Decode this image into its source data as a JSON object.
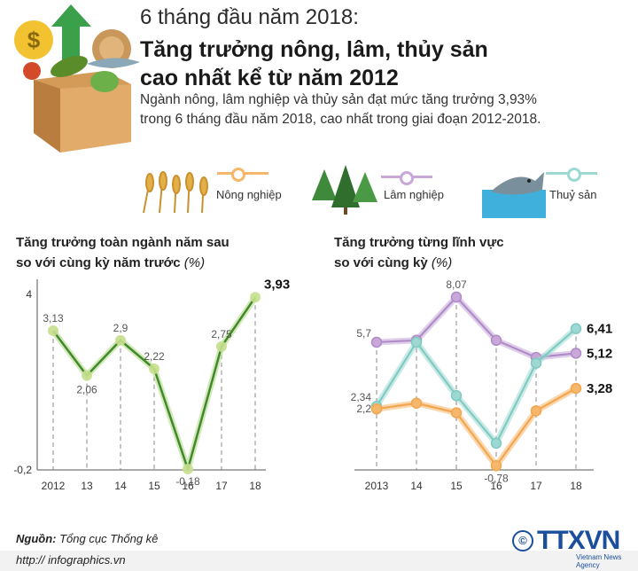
{
  "header": {
    "overline": "6 tháng đầu năm 2018:",
    "title_line1": "Tăng trưởng nông, lâm, thủy sản",
    "title_line2": "cao nhất kể từ năm 2012",
    "desc_line1": "Ngành nông, lâm nghiệp và thủy sản đạt mức tăng trưởng 3,93%",
    "desc_line2": "trong 6 tháng đầu năm 2018, cao nhất trong giai đoạn 2012-2018."
  },
  "legend": [
    {
      "label": "Nông nghiệp",
      "color": "#f5b76a",
      "icon": "wheat-icon"
    },
    {
      "label": "Lâm nghiệp",
      "color": "#c7a8d8",
      "icon": "forest-icon"
    },
    {
      "label": "Thuỷ sản",
      "color": "#9ed8d2",
      "icon": "fish-icon"
    }
  ],
  "chart_data": [
    {
      "type": "line",
      "title_line1": "Tăng trưởng toàn ngành năm sau",
      "title_line2": "so với cùng kỳ năm trước",
      "title_unit": "(%)",
      "categories": [
        "2012",
        "13",
        "14",
        "15",
        "16",
        "17",
        "18"
      ],
      "values": [
        3.13,
        2.06,
        2.9,
        2.22,
        -0.18,
        2.75,
        3.93
      ],
      "value_labels": [
        "3,13",
        "2,06",
        "2,9",
        "2,22",
        "-0,18",
        "2,75",
        "3,93"
      ],
      "ylim": [
        -0.2,
        4
      ],
      "y_ticks": [
        "4",
        "-0,2"
      ],
      "line_color": "#3f8a2c",
      "marker_color": "#c6df8e"
    },
    {
      "type": "line",
      "title_line1": "Tăng trưởng từng lĩnh vực",
      "title_line2": "so với cùng kỳ",
      "title_unit": "(%)",
      "categories": [
        "2013",
        "14",
        "15",
        "16",
        "17",
        "18"
      ],
      "ylim": [
        -1,
        9
      ],
      "series": [
        {
          "name": "Lâm nghiệp",
          "color": "#c7a8d8",
          "line": "#b08bc8",
          "values": [
            5.7,
            5.8,
            8.07,
            5.8,
            4.9,
            5.12
          ],
          "value_labels": [
            "5,7",
            "",
            "8,07",
            "",
            "",
            "5,12"
          ]
        },
        {
          "name": "Thuỷ sản",
          "color": "#9ed8d2",
          "line": "#7fcac2",
          "values": [
            2.34,
            5.7,
            2.9,
            0.4,
            4.6,
            6.41
          ],
          "value_labels": [
            "2,34",
            "",
            "",
            "",
            "",
            "6,41"
          ]
        },
        {
          "name": "Nông nghiệp",
          "color": "#f5b76a",
          "line": "#f3a64f",
          "values": [
            2.2,
            2.5,
            2.0,
            -0.78,
            2.1,
            3.28
          ],
          "value_labels": [
            "2,2",
            "",
            "",
            "-0,78",
            "",
            "3,28"
          ]
        }
      ]
    }
  ],
  "source": {
    "label": "Nguồn:",
    "text": "Tổng cục Thống kê"
  },
  "footer": {
    "url": "http:// infographics.vn",
    "brand": "TTXVN",
    "brand_sub": "Vietnam News Agency",
    "copyright": "©"
  }
}
